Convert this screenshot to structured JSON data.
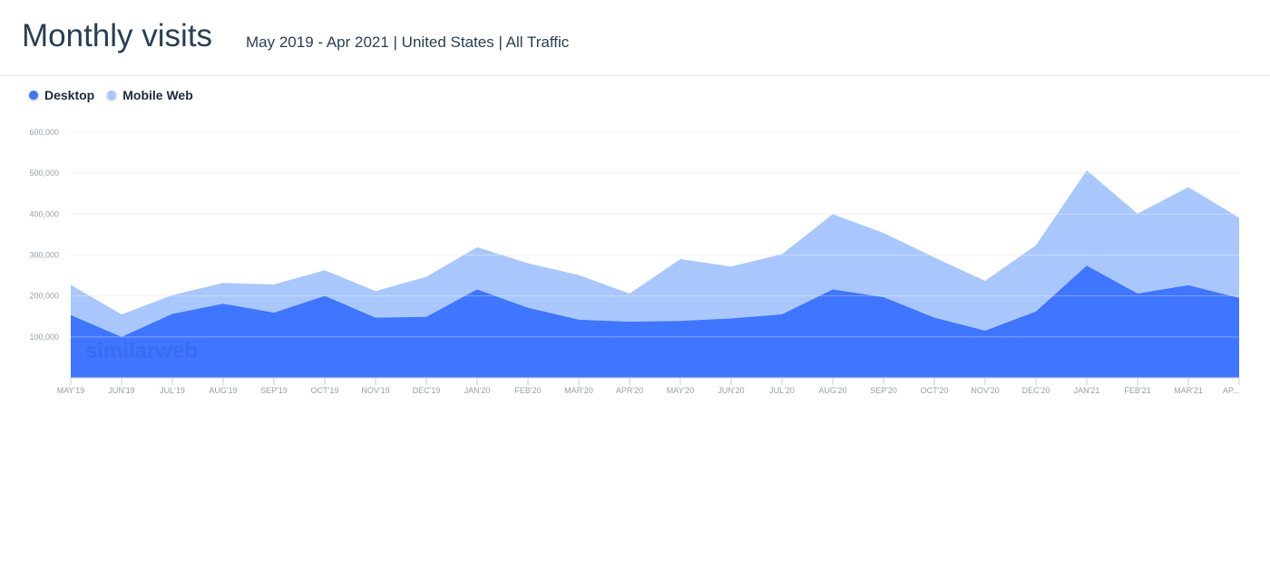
{
  "header": {
    "title": "Monthly visits",
    "subtitle": "May 2019 - Apr 2021 | United States | All Traffic"
  },
  "watermark": "similarweb",
  "chart_data": {
    "type": "area",
    "stacked": true,
    "categories": [
      "MAY'19",
      "JUN'19",
      "JUL'19",
      "AUG'19",
      "SEP'19",
      "OCT'19",
      "NOV'19",
      "DEC'19",
      "JAN'20",
      "FEB'20",
      "MAR'20",
      "APR'20",
      "MAY'20",
      "JUN'20",
      "JUL'20",
      "AUG'20",
      "SEP'20",
      "OCT'20",
      "NOV'20",
      "DEC'20",
      "JAN'21",
      "FEB'21",
      "MAR'21",
      "AP..."
    ],
    "series": [
      {
        "name": "Desktop",
        "color": "#3f75ff",
        "values": [
          153000,
          100000,
          156000,
          181000,
          159000,
          200000,
          147000,
          149000,
          216000,
          171000,
          142000,
          137000,
          139000,
          145000,
          155000,
          216000,
          197000,
          147000,
          115000,
          162000,
          274000,
          206000,
          226000,
          195000
        ]
      },
      {
        "name": "Mobile Web",
        "color": "#a9c7fc",
        "values": [
          74000,
          55000,
          46000,
          51000,
          69000,
          63000,
          65000,
          98000,
          103000,
          109000,
          109000,
          69000,
          151000,
          127000,
          147000,
          184000,
          157000,
          147000,
          122000,
          162000,
          233000,
          195000,
          240000,
          196000
        ]
      }
    ],
    "yticks": [
      "100,000",
      "200,000",
      "300,000",
      "400,000",
      "500,000",
      "600,000"
    ],
    "ylim": [
      0,
      600000
    ],
    "grid": true,
    "legend": "top-left"
  }
}
